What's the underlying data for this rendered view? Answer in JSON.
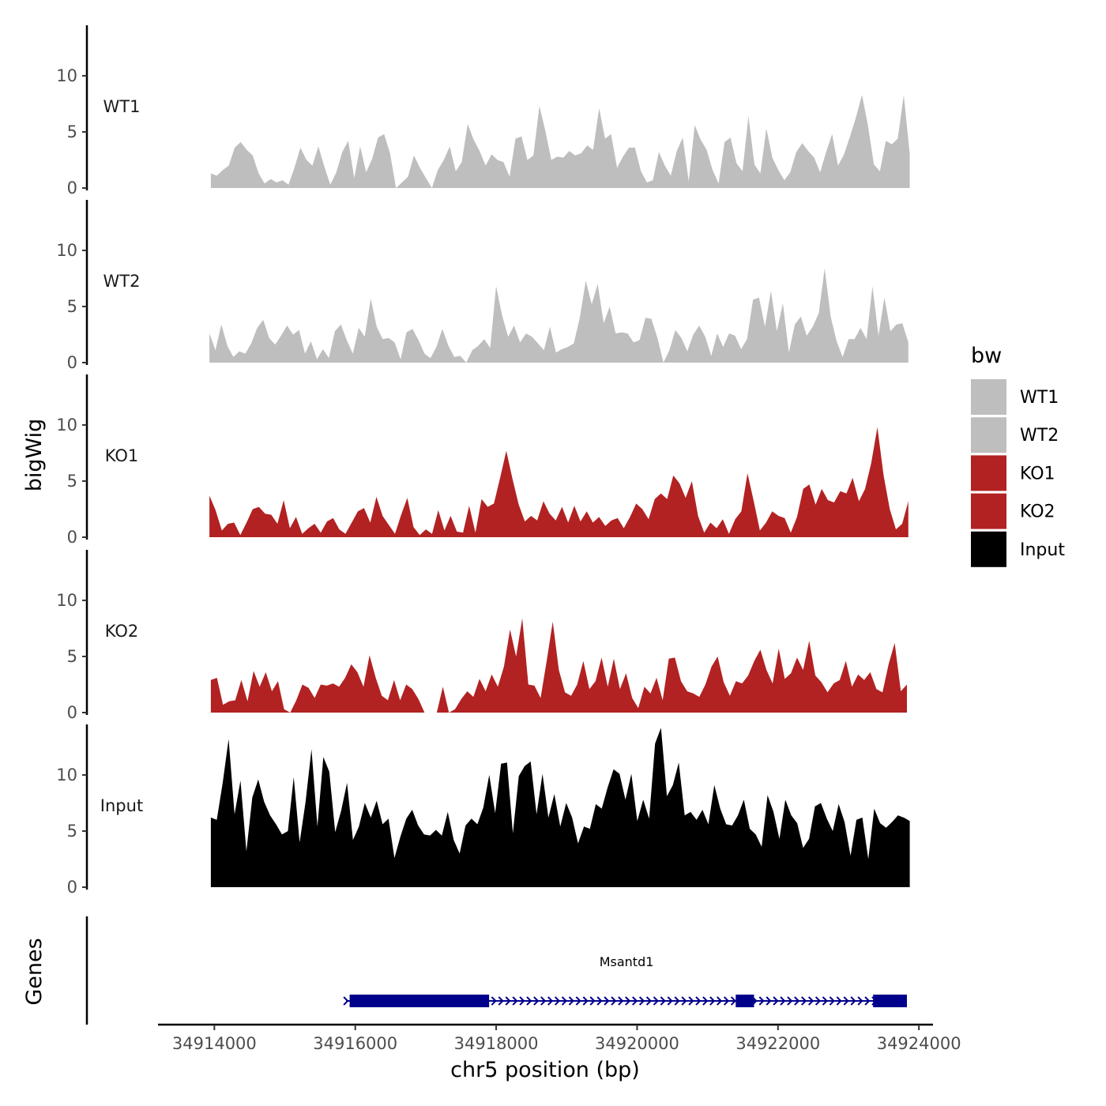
{
  "chart_data": {
    "type": "area",
    "ylabel": "bigWig",
    "xlabel": "chr5 position (bp)",
    "xlim": [
      34913200,
      34924200
    ],
    "x_ticks": [
      34914000,
      34916000,
      34918000,
      34920000,
      34922000,
      34924000
    ],
    "x_tick_labels": [
      "34914000",
      "34916000",
      "34918000",
      "34920000",
      "34922000",
      "34924000"
    ],
    "ylim": [
      0,
      14.5
    ],
    "y_ticks": [
      0,
      5,
      10
    ],
    "y_tick_labels": [
      "0",
      "5",
      "10"
    ],
    "series": [
      {
        "name": "WT1",
        "color": "#BEBEBE",
        "x_range": [
          34913950,
          34923870
        ],
        "values": [
          1.3,
          1.1,
          1.6,
          2.0,
          3.6,
          4.1,
          3.4,
          2.9,
          1.3,
          0.4,
          0.8,
          0.5,
          0.7,
          0.3,
          1.8,
          3.6,
          2.5,
          2.0,
          3.7,
          1.9,
          0.3,
          1.4,
          3.2,
          4.2,
          0.9,
          3.7,
          1.4,
          2.6,
          4.5,
          4.8,
          3.1,
          0.0,
          0.5,
          1.0,
          2.9,
          1.8,
          0.9,
          0.0,
          1.6,
          2.5,
          3.7,
          1.5,
          2.3,
          5.7,
          4.3,
          3.3,
          2.0,
          3.0,
          2.5,
          2.3,
          1.0,
          4.4,
          4.6,
          2.5,
          2.9,
          7.3,
          5.1,
          2.5,
          2.8,
          2.7,
          3.3,
          2.9,
          3.1,
          3.8,
          3.4,
          7.1,
          4.4,
          4.8,
          1.8,
          2.8,
          3.6,
          3.6,
          1.5,
          0.5,
          0.7,
          3.2,
          2.0,
          1.1,
          3.3,
          4.5,
          0.6,
          5.6,
          4.3,
          3.4,
          1.6,
          0.4,
          4.1,
          4.5,
          2.2,
          1.5,
          6.4,
          2.1,
          1.3,
          5.3,
          2.7,
          1.6,
          0.7,
          1.4,
          3.2,
          4.0,
          3.3,
          2.7,
          1.4,
          3.2,
          4.8,
          2.0,
          3.0,
          4.6,
          6.3,
          8.3,
          5.6,
          2.1,
          1.5,
          4.2,
          3.9,
          4.4,
          8.3,
          3.0
        ]
      },
      {
        "name": "WT2",
        "color": "#BEBEBE",
        "x_range": [
          34913930,
          34923850
        ],
        "values": [
          2.6,
          1.1,
          3.4,
          1.5,
          0.5,
          1.0,
          0.8,
          1.7,
          3.1,
          3.8,
          2.2,
          1.6,
          2.4,
          3.3,
          2.5,
          2.9,
          0.8,
          1.9,
          0.3,
          1.2,
          0.4,
          2.8,
          3.4,
          2.0,
          0.8,
          3.1,
          2.3,
          5.7,
          3.2,
          2.1,
          2.2,
          1.8,
          0.3,
          2.7,
          3.0,
          2.0,
          0.8,
          0.4,
          1.4,
          3.0,
          1.5,
          0.5,
          0.6,
          0.0,
          1.1,
          1.5,
          2.1,
          1.3,
          6.8,
          4.2,
          2.3,
          3.3,
          1.8,
          2.6,
          2.3,
          1.7,
          1.1,
          3.2,
          0.9,
          1.2,
          1.4,
          1.7,
          4.0,
          7.3,
          5.2,
          7.0,
          3.5,
          5.0,
          2.6,
          2.7,
          2.6,
          1.8,
          2.0,
          4.0,
          3.9,
          2.2,
          0.0,
          1.1,
          2.9,
          2.2,
          1.0,
          2.5,
          3.3,
          2.3,
          0.6,
          2.6,
          1.4,
          2.6,
          2.4,
          1.2,
          2.1,
          5.6,
          5.8,
          3.2,
          6.4,
          2.8,
          5.3,
          0.9,
          3.4,
          4.1,
          2.4,
          3.2,
          4.4,
          8.4,
          4.1,
          1.9,
          0.5,
          2.1,
          2.1,
          3.1,
          2.1,
          6.8,
          2.4,
          5.8,
          2.8,
          3.4,
          3.5,
          1.8
        ]
      },
      {
        "name": "KO1",
        "color": "#B22222",
        "x_range": [
          34913930,
          34923850
        ],
        "values": [
          3.7,
          2.4,
          0.6,
          1.2,
          1.3,
          0.2,
          1.3,
          2.5,
          2.7,
          2.1,
          2.0,
          1.2,
          3.3,
          0.8,
          1.8,
          0.3,
          0.8,
          1.2,
          0.4,
          1.4,
          1.7,
          0.7,
          0.3,
          1.3,
          2.3,
          2.6,
          1.3,
          3.6,
          1.9,
          1.1,
          0.3,
          2.0,
          3.5,
          0.9,
          0.2,
          0.7,
          0.3,
          2.4,
          0.6,
          1.9,
          0.5,
          0.4,
          2.8,
          0.4,
          3.4,
          2.7,
          3.0,
          5.3,
          7.7,
          5.2,
          2.9,
          1.4,
          1.9,
          1.5,
          3.2,
          2.1,
          1.5,
          2.7,
          1.3,
          2.8,
          1.4,
          2.3,
          1.3,
          1.8,
          1.0,
          1.5,
          1.7,
          0.8,
          1.8,
          3.0,
          2.5,
          1.6,
          3.4,
          3.9,
          3.4,
          5.5,
          4.8,
          3.5,
          5.0,
          1.9,
          0.4,
          1.3,
          0.8,
          1.6,
          0.3,
          1.6,
          2.3,
          5.7,
          3.2,
          0.6,
          1.3,
          2.3,
          1.9,
          1.7,
          0.4,
          1.8,
          4.3,
          4.7,
          2.9,
          4.3,
          3.3,
          3.1,
          4.1,
          3.9,
          5.3,
          3.2,
          4.3,
          6.6,
          9.8,
          5.5,
          2.5,
          0.7,
          1.2,
          3.2
        ]
      },
      {
        "name": "KO2",
        "color": "#B22222",
        "x_range": [
          34913950,
          34923830
        ],
        "values": [
          2.9,
          3.1,
          0.7,
          1.0,
          1.1,
          2.9,
          1.0,
          3.7,
          2.3,
          3.6,
          1.9,
          2.8,
          0.3,
          0.0,
          1.1,
          2.5,
          2.2,
          1.3,
          2.5,
          2.4,
          2.6,
          2.3,
          3.1,
          4.3,
          3.6,
          2.3,
          5.1,
          3.1,
          1.5,
          1.1,
          2.9,
          1.1,
          2.5,
          2.1,
          1.2,
          0.0,
          0.0,
          0.0,
          2.3,
          0.0,
          0.3,
          1.2,
          1.9,
          1.4,
          3.0,
          1.9,
          3.4,
          2.3,
          4.1,
          7.4,
          5.0,
          8.4,
          2.5,
          2.4,
          1.3,
          4.6,
          8.1,
          3.8,
          1.8,
          1.5,
          2.5,
          4.6,
          2.1,
          2.8,
          4.9,
          2.3,
          4.8,
          2.1,
          3.5,
          1.3,
          0.4,
          2.3,
          1.7,
          3.1,
          1.1,
          4.8,
          4.9,
          2.8,
          1.9,
          1.7,
          1.4,
          2.5,
          4.1,
          5.0,
          2.7,
          1.5,
          2.8,
          2.6,
          3.3,
          4.6,
          5.6,
          3.8,
          2.6,
          5.7,
          3.0,
          3.5,
          4.9,
          3.8,
          6.4,
          3.3,
          2.7,
          1.8,
          2.6,
          2.9,
          4.6,
          2.3,
          3.4,
          2.9,
          3.6,
          2.1,
          1.8,
          4.3,
          6.2,
          1.9,
          2.5
        ]
      },
      {
        "name": "Input",
        "color": "#000000",
        "x_range": [
          34913950,
          34923870
        ],
        "values": [
          6.2,
          6.0,
          9.3,
          13.2,
          6.5,
          9.5,
          3.2,
          8.0,
          9.6,
          7.6,
          6.4,
          5.6,
          4.7,
          5.0,
          9.8,
          4.0,
          7.6,
          12.3,
          5.4,
          11.6,
          10.3,
          4.9,
          6.8,
          9.3,
          4.2,
          5.4,
          7.5,
          6.2,
          7.7,
          5.6,
          6.1,
          2.6,
          4.5,
          6.1,
          6.9,
          5.5,
          4.7,
          4.6,
          5.1,
          4.6,
          6.7,
          4.2,
          3.0,
          5.5,
          6.1,
          5.6,
          7.1,
          10.0,
          6.6,
          11.0,
          11.1,
          4.8,
          9.9,
          10.8,
          11.2,
          6.5,
          10.1,
          6.2,
          8.3,
          5.4,
          7.5,
          6.2,
          3.9,
          5.4,
          5.2,
          7.4,
          7.0,
          8.9,
          10.5,
          10.1,
          7.8,
          10.1,
          5.9,
          7.8,
          6.1,
          12.8,
          14.2,
          8.1,
          9.1,
          11.1,
          6.4,
          6.7,
          6.0,
          6.9,
          5.6,
          9.1,
          7.0,
          5.6,
          5.5,
          6.4,
          7.8,
          5.2,
          4.7,
          3.6,
          8.2,
          6.7,
          4.3,
          7.8,
          6.4,
          5.7,
          3.5,
          4.3,
          7.2,
          7.5,
          6.1,
          5.0,
          7.4,
          5.8,
          2.8,
          6.0,
          6.2,
          2.5,
          7.0,
          5.7,
          5.3,
          5.8,
          6.4,
          6.2,
          5.9
        ]
      }
    ],
    "tracks": [
      {
        "label": "WT1",
        "series": "WT1"
      },
      {
        "label": "WT2",
        "series": "WT2"
      },
      {
        "label": "KO1",
        "series": "KO1"
      },
      {
        "label": "KO2",
        "series": "KO2"
      },
      {
        "label": "Input",
        "series": "Input"
      }
    ],
    "legend": {
      "title": "bw",
      "position": "right",
      "entries": [
        {
          "label": "WT1",
          "color": "#BEBEBE"
        },
        {
          "label": "WT2",
          "color": "#BEBEBE"
        },
        {
          "label": "KO1",
          "color": "#B22222"
        },
        {
          "label": "KO2",
          "color": "#B22222"
        },
        {
          "label": "Input",
          "color": "#000000"
        }
      ]
    },
    "genes_panel": {
      "ylabel": "Genes",
      "gene": {
        "name": "Msantd1",
        "color": "#00008B",
        "strand": "+",
        "start": 34915870,
        "end": 34923830,
        "exons": [
          [
            34915920,
            34917900
          ],
          [
            34921400,
            34921660
          ],
          [
            34923350,
            34923830
          ]
        ]
      }
    }
  }
}
